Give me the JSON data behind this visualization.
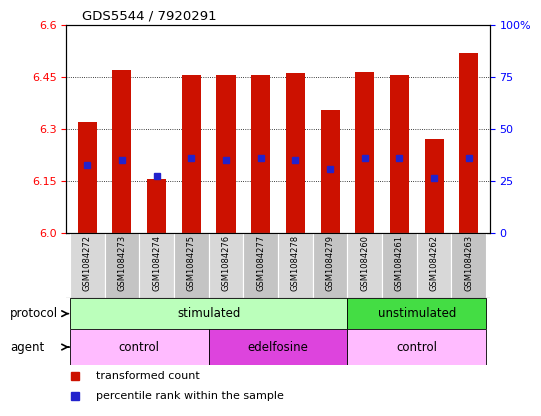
{
  "title": "GDS5544 / 7920291",
  "samples": [
    "GSM1084272",
    "GSM1084273",
    "GSM1084274",
    "GSM1084275",
    "GSM1084276",
    "GSM1084277",
    "GSM1084278",
    "GSM1084279",
    "GSM1084260",
    "GSM1084261",
    "GSM1084262",
    "GSM1084263"
  ],
  "bar_heights": [
    6.32,
    6.47,
    6.155,
    6.455,
    6.455,
    6.455,
    6.46,
    6.355,
    6.465,
    6.455,
    6.27,
    6.52
  ],
  "percentile_values": [
    6.195,
    6.21,
    6.165,
    6.215,
    6.21,
    6.215,
    6.21,
    6.185,
    6.215,
    6.215,
    6.16,
    6.215
  ],
  "bar_bottom": 6.0,
  "ylim": [
    6.0,
    6.6
  ],
  "yticks_left": [
    6.0,
    6.15,
    6.3,
    6.45,
    6.6
  ],
  "yticks_right_labels": [
    "0",
    "25",
    "50",
    "75",
    "100%"
  ],
  "bar_color": "#cc1100",
  "percentile_color": "#2222cc",
  "bg_color": "#ffffff",
  "protocol_groups": [
    {
      "label": "stimulated",
      "start": 0,
      "end": 7,
      "color": "#bbffbb"
    },
    {
      "label": "unstimulated",
      "start": 8,
      "end": 11,
      "color": "#44dd44"
    }
  ],
  "agent_groups": [
    {
      "label": "control",
      "start": 0,
      "end": 3,
      "color": "#ffbbff"
    },
    {
      "label": "edelfosine",
      "start": 4,
      "end": 7,
      "color": "#dd44dd"
    },
    {
      "label": "control",
      "start": 8,
      "end": 11,
      "color": "#ffbbff"
    }
  ],
  "legend_items": [
    {
      "label": "transformed count",
      "color": "#cc1100"
    },
    {
      "label": "percentile rank within the sample",
      "color": "#2222cc"
    }
  ],
  "xlabel_protocol": "protocol",
  "xlabel_agent": "agent",
  "cell_colors": [
    "#d8d8d8",
    "#c4c4c4"
  ]
}
